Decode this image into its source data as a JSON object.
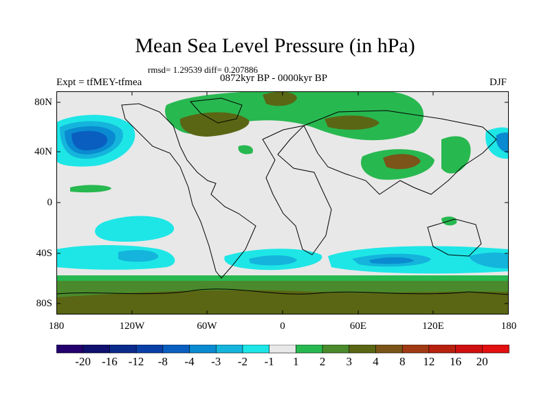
{
  "title": "Mean Sea Level Pressure (in hPa)",
  "stats": "rmsd= 1.29539 diff= 0.207886",
  "period": "0872kyr BP - 0000kyr BP",
  "experiment": "Expt = tfMEY-tfmea",
  "season": "DJF",
  "lat_labels": [
    "80N",
    "40N",
    "0",
    "40S",
    "80S"
  ],
  "lon_labels": [
    "180",
    "120W",
    "60W",
    "0",
    "60E",
    "120E",
    "180"
  ],
  "colorbar": {
    "labels": [
      "-20",
      "-16",
      "-12",
      "-8",
      "-4",
      "-3",
      "-2",
      "-1",
      "1",
      "2",
      "3",
      "4",
      "8",
      "12",
      "16",
      "20"
    ],
    "colors": [
      "#24006e",
      "#10106e",
      "#0a2a8c",
      "#0a3fa8",
      "#0a5ec0",
      "#0a8ad0",
      "#14b4dc",
      "#1ee6e6",
      "#e8e8e8",
      "#28b850",
      "#4a8a2c",
      "#5a6614",
      "#7a5418",
      "#a03a14",
      "#b8200e",
      "#d01010",
      "#e21010"
    ]
  },
  "colors": {
    "neutral": "#e8e8e8",
    "ocean_low": "#1ee6e6",
    "low2": "#14b4dc",
    "low3": "#0a8ad0",
    "low4": "#0a5ec0",
    "green": "#28b850",
    "olive": "#5a6614",
    "brown": "#7a5418"
  }
}
